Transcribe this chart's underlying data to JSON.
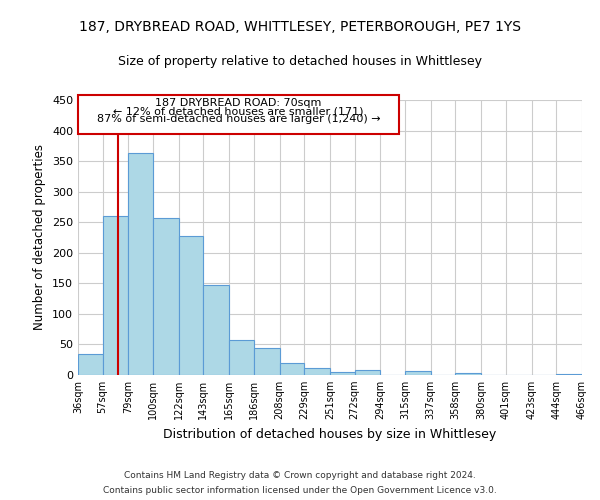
{
  "title": "187, DRYBREAD ROAD, WHITTLESEY, PETERBOROUGH, PE7 1YS",
  "subtitle": "Size of property relative to detached houses in Whittlesey",
  "xlabel": "Distribution of detached houses by size in Whittlesey",
  "ylabel": "Number of detached properties",
  "bar_color": "#add8e6",
  "bar_edge_color": "#5b9bd5",
  "background_color": "#ffffff",
  "grid_color": "#cccccc",
  "bins": [
    36,
    57,
    79,
    100,
    122,
    143,
    165,
    186,
    208,
    229,
    251,
    272,
    294,
    315,
    337,
    358,
    380,
    401,
    423,
    444,
    466
  ],
  "bin_labels": [
    "36sqm",
    "57sqm",
    "79sqm",
    "100sqm",
    "122sqm",
    "143sqm",
    "165sqm",
    "186sqm",
    "208sqm",
    "229sqm",
    "251sqm",
    "272sqm",
    "294sqm",
    "315sqm",
    "337sqm",
    "358sqm",
    "380sqm",
    "401sqm",
    "423sqm",
    "444sqm",
    "466sqm"
  ],
  "counts": [
    35,
    260,
    363,
    257,
    228,
    148,
    57,
    45,
    20,
    12,
    5,
    8,
    0,
    6,
    0,
    3,
    0,
    0,
    0,
    2
  ],
  "ylim": [
    0,
    450
  ],
  "yticks": [
    0,
    50,
    100,
    150,
    200,
    250,
    300,
    350,
    400,
    450
  ],
  "property_line_x": 70,
  "property_line_color": "#cc0000",
  "annotation_text_line1": "187 DRYBREAD ROAD: 70sqm",
  "annotation_text_line2": "← 12% of detached houses are smaller (171)",
  "annotation_text_line3": "87% of semi-detached houses are larger (1,240) →",
  "footer_line1": "Contains HM Land Registry data © Crown copyright and database right 2024.",
  "footer_line2": "Contains public sector information licensed under the Open Government Licence v3.0."
}
